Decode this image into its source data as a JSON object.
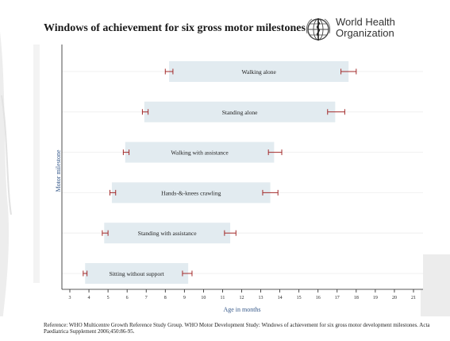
{
  "title": "Windows of achievement for six gross motor milestones",
  "logo": {
    "line1": "World Health",
    "line2": "Organization",
    "icon": "who-emblem-icon"
  },
  "reference": "Reference: WHO Multicentre Growth Reference Study Group. WHO Motor Development Study: Windows of achievement for six gross motor development milestones. Acta Paediatrica Supplement 2006;450:86-95.",
  "colors": {
    "bar_fill": "#e2ebf0",
    "error_bar": "#a32a2a",
    "axis": "#222222",
    "xlabel": "#3a5c8c",
    "grid": "#eeeeee"
  },
  "chart_data": {
    "type": "bar",
    "orientation": "horizontal-range",
    "title": "Windows of achievement for six gross motor milestones",
    "xlabel": "Age in months",
    "ylabel": "Motor milestone",
    "xlim": [
      3,
      21
    ],
    "xticks": [
      3,
      4,
      5,
      6,
      7,
      8,
      9,
      10,
      11,
      12,
      13,
      14,
      15,
      16,
      17,
      18,
      19,
      20,
      21
    ],
    "grid": "horizontal",
    "series": [
      {
        "label": "Walking alone",
        "start": 8.2,
        "end": 17.6,
        "start_ci": [
          8.0,
          8.4
        ],
        "end_ci": [
          17.2,
          18.0
        ]
      },
      {
        "label": "Standing alone",
        "start": 6.9,
        "end": 16.9,
        "start_ci": [
          6.8,
          7.1
        ],
        "end_ci": [
          16.5,
          17.4
        ]
      },
      {
        "label": "Walking with assistance",
        "start": 5.9,
        "end": 13.7,
        "start_ci": [
          5.8,
          6.1
        ],
        "end_ci": [
          13.4,
          14.1
        ]
      },
      {
        "label": "Hands-&-knees crawling",
        "start": 5.2,
        "end": 13.5,
        "start_ci": [
          5.1,
          5.4
        ],
        "end_ci": [
          13.1,
          13.9
        ]
      },
      {
        "label": "Standing with assistance",
        "start": 4.8,
        "end": 11.4,
        "start_ci": [
          4.7,
          5.0
        ],
        "end_ci": [
          11.1,
          11.7
        ]
      },
      {
        "label": "Sitting without support",
        "start": 3.8,
        "end": 9.2,
        "start_ci": [
          3.7,
          3.9
        ],
        "end_ci": [
          8.9,
          9.4
        ]
      }
    ]
  }
}
